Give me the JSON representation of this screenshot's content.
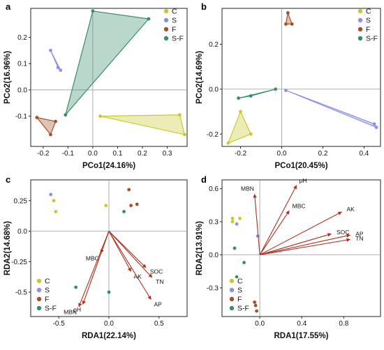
{
  "colors": {
    "C": "#c8c832",
    "S": "#8f8fe8",
    "F": "#a0522d",
    "S-F": "#3a8c6e"
  },
  "legend": [
    "C",
    "S",
    "F",
    "S-F"
  ],
  "chart_data": [
    {
      "type": "scatter",
      "panel": "a",
      "xlabel": "PCo1(24.16%)",
      "ylabel": "PCo2(16.96%)",
      "xlim": [
        -0.25,
        0.38
      ],
      "ylim": [
        -0.215,
        0.31
      ],
      "xticks": [
        -0.2,
        -0.1,
        0.0,
        0.1,
        0.2,
        0.3
      ],
      "xtick_labels": [
        "-0.2",
        "-0.1",
        "0.0",
        "0.1",
        "0.2",
        "0.3"
      ],
      "yticks": [
        -0.1,
        0.0,
        0.1,
        0.2
      ],
      "ytick_labels": [
        "-0.1",
        "0.0",
        "0.1",
        "0.2"
      ],
      "legend_position": "top-right",
      "zero_lines": true,
      "series": [
        {
          "name": "C",
          "points": [
            [
              0.03,
              -0.1
            ],
            [
              0.35,
              -0.095
            ],
            [
              0.37,
              -0.17
            ]
          ],
          "hull": true
        },
        {
          "name": "S",
          "points": [
            [
              -0.17,
              0.15
            ],
            [
              -0.14,
              0.085
            ],
            [
              -0.13,
              0.075
            ]
          ],
          "hull": true
        },
        {
          "name": "F",
          "points": [
            [
              -0.225,
              -0.105
            ],
            [
              -0.15,
              -0.12
            ],
            [
              -0.17,
              -0.17
            ]
          ],
          "hull": true
        },
        {
          "name": "S-F",
          "points": [
            [
              0.0,
              0.3
            ],
            [
              0.225,
              0.27
            ],
            [
              -0.11,
              -0.095
            ]
          ],
          "hull": true
        }
      ]
    },
    {
      "type": "scatter",
      "panel": "b",
      "xlabel": "PCo1(20.45%)",
      "ylabel": "PCo2(14.69%)",
      "xlim": [
        -0.29,
        0.48
      ],
      "ylim": [
        -0.255,
        0.36
      ],
      "xticks": [
        -0.2,
        0.0,
        0.2,
        0.4
      ],
      "xtick_labels": [
        "-0.2",
        "0.0",
        "0.2",
        "0.4"
      ],
      "yticks": [
        -0.2,
        0.0,
        0.2
      ],
      "ytick_labels": [
        "-0.2",
        "0.0",
        "0.2"
      ],
      "legend_position": "top-right",
      "zero_lines": true,
      "series": [
        {
          "name": "C",
          "points": [
            [
              -0.26,
              -0.24
            ],
            [
              -0.2,
              -0.1
            ],
            [
              -0.15,
              -0.2
            ]
          ],
          "hull": true
        },
        {
          "name": "S",
          "points": [
            [
              0.02,
              -0.005
            ],
            [
              0.45,
              -0.155
            ],
            [
              0.46,
              -0.17
            ]
          ],
          "hull": true
        },
        {
          "name": "F",
          "points": [
            [
              0.03,
              0.34
            ],
            [
              0.02,
              0.29
            ],
            [
              0.05,
              0.29
            ]
          ],
          "hull": true
        },
        {
          "name": "S-F",
          "points": [
            [
              -0.21,
              -0.04
            ],
            [
              -0.15,
              -0.03
            ],
            [
              -0.03,
              0.0
            ]
          ],
          "hull": true
        }
      ]
    },
    {
      "type": "scatter",
      "panel": "c",
      "xlabel": "RDA1(22.14%)",
      "ylabel": "RDA2(14.68%)",
      "xlim": [
        -0.78,
        0.78
      ],
      "ylim": [
        -0.7,
        0.42
      ],
      "xticks": [
        -0.5,
        0.0,
        0.5
      ],
      "xtick_labels": [
        "-0.5",
        "0.0",
        "0.5"
      ],
      "yticks": [
        -0.5,
        -0.25,
        0.0,
        0.25
      ],
      "ytick_labels": [
        "-0.5",
        "-0.25",
        "0.0",
        "0.25"
      ],
      "legend_position": "bottom-left",
      "zero_lines": true,
      "series": [
        {
          "name": "C",
          "points": [
            [
              -0.55,
              0.25
            ],
            [
              -0.53,
              0.16
            ],
            [
              -0.03,
              0.21
            ]
          ]
        },
        {
          "name": "S",
          "points": [
            [
              -0.58,
              0.3
            ]
          ]
        },
        {
          "name": "F",
          "points": [
            [
              0.2,
              0.34
            ],
            [
              0.28,
              0.22
            ],
            [
              0.22,
              0.21
            ]
          ]
        },
        {
          "name": "S-F",
          "points": [
            [
              0.15,
              0.16
            ],
            [
              -0.33,
              -0.46
            ],
            [
              0.0,
              -0.5
            ]
          ]
        }
      ],
      "arrows": [
        {
          "label": "MBC",
          "x": -0.08,
          "y": -0.18
        },
        {
          "label": "SOC",
          "x": 0.37,
          "y": -0.3
        },
        {
          "label": "TN",
          "x": 0.43,
          "y": -0.38
        },
        {
          "label": "AK",
          "x": 0.22,
          "y": -0.33
        },
        {
          "label": "AP",
          "x": 0.42,
          "y": -0.56
        },
        {
          "label": "pH",
          "x": -0.26,
          "y": -0.6
        },
        {
          "label": "MBN",
          "x": -0.3,
          "y": -0.62
        }
      ]
    },
    {
      "type": "scatter",
      "panel": "d",
      "xlabel": "RDA1(17.55%)",
      "ylabel": "RDA2(13.91%)",
      "xlim": [
        -0.36,
        1.15
      ],
      "ylim": [
        -0.56,
        0.68
      ],
      "xticks": [
        0.0,
        0.4,
        0.8
      ],
      "xtick_labels": [
        "0.0",
        "0.4",
        "0.8"
      ],
      "yticks": [
        -0.3,
        0.0,
        0.3,
        0.6
      ],
      "ytick_labels": [
        "-0.3",
        "0.0",
        "0.3",
        "0.6"
      ],
      "legend_position": "bottom-left",
      "zero_lines": true,
      "series": [
        {
          "name": "C",
          "points": [
            [
              -0.26,
              0.33
            ],
            [
              -0.26,
              0.3
            ],
            [
              -0.19,
              0.33
            ]
          ]
        },
        {
          "name": "S",
          "points": [
            [
              -0.22,
              0.28
            ],
            [
              -0.02,
              0.17
            ]
          ]
        },
        {
          "name": "F",
          "points": [
            [
              -0.05,
              -0.43
            ],
            [
              -0.04,
              -0.46
            ],
            [
              -0.03,
              -0.51
            ]
          ]
        },
        {
          "name": "S-F",
          "points": [
            [
              -0.24,
              0.06
            ],
            [
              -0.15,
              -0.07
            ],
            [
              -0.22,
              -0.2
            ]
          ]
        }
      ],
      "arrows": [
        {
          "label": "MBN",
          "x": -0.05,
          "y": 0.55
        },
        {
          "label": "pH",
          "x": 0.35,
          "y": 0.63
        },
        {
          "label": "MBC",
          "x": 0.28,
          "y": 0.4
        },
        {
          "label": "AK",
          "x": 0.78,
          "y": 0.39
        },
        {
          "label": "SOC",
          "x": 0.68,
          "y": 0.19
        },
        {
          "label": "AP",
          "x": 0.86,
          "y": 0.18
        },
        {
          "label": "TN",
          "x": 0.86,
          "y": 0.14
        }
      ]
    }
  ]
}
